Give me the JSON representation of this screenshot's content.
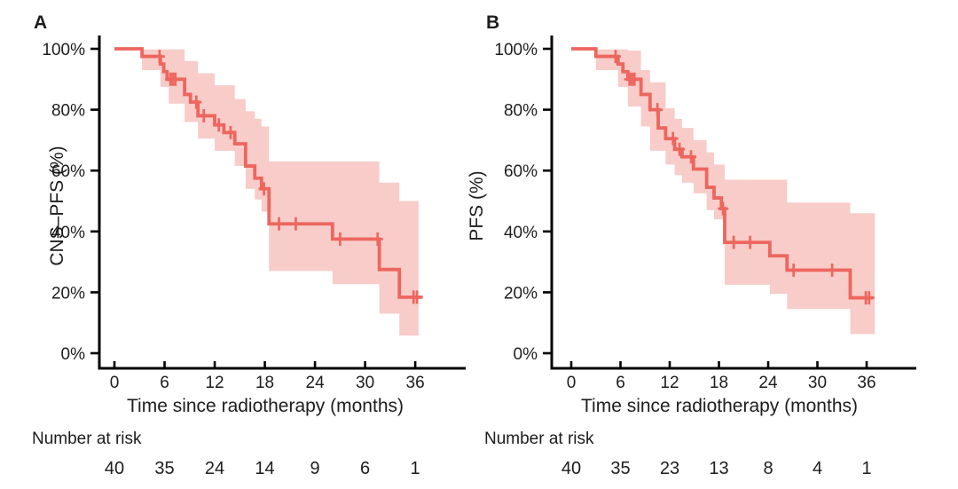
{
  "figure": {
    "background": "#ffffff",
    "curve_color": "#ED665E",
    "band_color": "#F8CCC9",
    "axis_color": "#000000",
    "text_color": "#1d1d1d"
  },
  "chart_data": [
    {
      "type": "line",
      "subtype": "kaplan-meier-step",
      "panel_label": "A",
      "xlabel": "Time since radiotherapy (months)",
      "ylabel": "CNS–PFS (%)",
      "xlim": [
        0,
        39
      ],
      "ylim": [
        0,
        100
      ],
      "grid": false,
      "legend": "none",
      "x_ticks": [
        0,
        6,
        12,
        18,
        24,
        30,
        36
      ],
      "x_tick_labels": [
        "0",
        "6",
        "12",
        "18",
        "24",
        "30",
        "36"
      ],
      "y_ticks": [
        0,
        20,
        40,
        60,
        80,
        100
      ],
      "y_tick_labels": [
        "0%",
        "20%",
        "40%",
        "60%",
        "80%",
        "100%"
      ],
      "series": [
        {
          "name": "CNS-PFS",
          "steps": [
            [
              0,
              100
            ],
            [
              3.3,
              97.5
            ],
            [
              5.5,
              95
            ],
            [
              5.9,
              92.5
            ],
            [
              6.3,
              90
            ],
            [
              8.4,
              85
            ],
            [
              9.1,
              82.5
            ],
            [
              10.0,
              78
            ],
            [
              12.0,
              75
            ],
            [
              13.1,
              72.5
            ],
            [
              14.4,
              68.8
            ],
            [
              15.7,
              61.5
            ],
            [
              16.8,
              57.5
            ],
            [
              17.6,
              54
            ],
            [
              18.5,
              42.5
            ],
            [
              26.1,
              37.5
            ],
            [
              31.7,
              27.5
            ],
            [
              34.1,
              18.4
            ]
          ],
          "end_t": 36.9,
          "censors": [
            [
              5.4,
              97.5
            ],
            [
              6.7,
              90
            ],
            [
              7.0,
              90
            ],
            [
              7.3,
              90
            ],
            [
              9.8,
              82.5
            ],
            [
              10.7,
              78
            ],
            [
              12.5,
              75
            ],
            [
              13.9,
              72.5
            ],
            [
              17.9,
              54
            ],
            [
              19.7,
              42.5
            ],
            [
              21.7,
              42.5
            ],
            [
              27.0,
              37.5
            ],
            [
              31.5,
              37.5
            ],
            [
              35.8,
              18.4
            ],
            [
              36.2,
              18.4
            ]
          ],
          "ci_band": [
            [
              3.3,
              93,
              99.8
            ],
            [
              5.5,
              87.5,
              99.8
            ],
            [
              6.5,
              82,
              99.8
            ],
            [
              8.4,
              76,
              96
            ],
            [
              10.0,
              70.5,
              92
            ],
            [
              12.0,
              66.5,
              88
            ],
            [
              14.4,
              61.5,
              83.5
            ],
            [
              15.7,
              54,
              79.5
            ],
            [
              16.8,
              50.5,
              77
            ],
            [
              17.6,
              46.5,
              74.5
            ],
            [
              18.5,
              27,
              63
            ],
            [
              26.1,
              22.7,
              63
            ],
            [
              31.7,
              13,
              56
            ],
            [
              34.1,
              5.8,
              50
            ]
          ],
          "band_end_t": 36.4
        }
      ],
      "number_at_risk": {
        "label": "Number at risk",
        "times": [
          0,
          6,
          12,
          18,
          24,
          30,
          36
        ],
        "counts": [
          "40",
          "35",
          "24",
          "14",
          "9",
          "6",
          "1"
        ]
      }
    },
    {
      "type": "line",
      "subtype": "kaplan-meier-step",
      "panel_label": "B",
      "xlabel": "Time since radiotherapy (months)",
      "ylabel": "PFS (%)",
      "xlim": [
        0,
        39
      ],
      "ylim": [
        0,
        100
      ],
      "grid": false,
      "legend": "none",
      "x_ticks": [
        0,
        6,
        12,
        18,
        24,
        30,
        36
      ],
      "x_tick_labels": [
        "0",
        "6",
        "12",
        "18",
        "24",
        "30",
        "36"
      ],
      "y_ticks": [
        0,
        20,
        40,
        60,
        80,
        100
      ],
      "y_tick_labels": [
        "0%",
        "20%",
        "40%",
        "60%",
        "80%",
        "100%"
      ],
      "series": [
        {
          "name": "PFS",
          "steps": [
            [
              0,
              100
            ],
            [
              3.0,
              97.5
            ],
            [
              5.7,
              95
            ],
            [
              6.3,
              92.5
            ],
            [
              6.9,
              90
            ],
            [
              8.5,
              85
            ],
            [
              9.6,
              80
            ],
            [
              10.6,
              74
            ],
            [
              11.5,
              70.5
            ],
            [
              12.6,
              67
            ],
            [
              13.5,
              64.5
            ],
            [
              14.9,
              60.5
            ],
            [
              16.5,
              54.5
            ],
            [
              17.4,
              51
            ],
            [
              18.3,
              47.5
            ],
            [
              18.7,
              36.4
            ],
            [
              24.2,
              32
            ],
            [
              26.3,
              27.3
            ],
            [
              34.0,
              18.2
            ]
          ],
          "end_t": 36.8,
          "censors": [
            [
              5.4,
              97.5
            ],
            [
              7.1,
              90
            ],
            [
              7.4,
              90
            ],
            [
              7.7,
              90
            ],
            [
              10.5,
              80
            ],
            [
              12.4,
              70.5
            ],
            [
              13.2,
              67
            ],
            [
              14.6,
              64.5
            ],
            [
              18.5,
              47.5
            ],
            [
              19.8,
              36.4
            ],
            [
              21.8,
              36.4
            ],
            [
              27.1,
              27.3
            ],
            [
              31.8,
              27.3
            ],
            [
              35.9,
              18.2
            ],
            [
              36.3,
              18.2
            ]
          ],
          "ci_band": [
            [
              3.0,
              93,
              99.8
            ],
            [
              5.7,
              87.5,
              99.8
            ],
            [
              6.9,
              81,
              99.4
            ],
            [
              8.5,
              74.5,
              93
            ],
            [
              9.6,
              66.5,
              89
            ],
            [
              11.5,
              62,
              80.5
            ],
            [
              12.6,
              58.5,
              77
            ],
            [
              13.5,
              56,
              74
            ],
            [
              14.9,
              52.5,
              70
            ],
            [
              16.5,
              47,
              66
            ],
            [
              17.4,
              44,
              62
            ],
            [
              18.7,
              22.5,
              57
            ],
            [
              24.2,
              19.5,
              57
            ],
            [
              26.3,
              14.5,
              49.5
            ],
            [
              34.0,
              6.3,
              46
            ]
          ],
          "band_end_t": 37.0
        }
      ],
      "number_at_risk": {
        "label": "Number at risk",
        "times": [
          0,
          6,
          12,
          18,
          24,
          30,
          36
        ],
        "counts": [
          "40",
          "35",
          "23",
          "13",
          "8",
          "4",
          "1"
        ]
      }
    }
  ]
}
